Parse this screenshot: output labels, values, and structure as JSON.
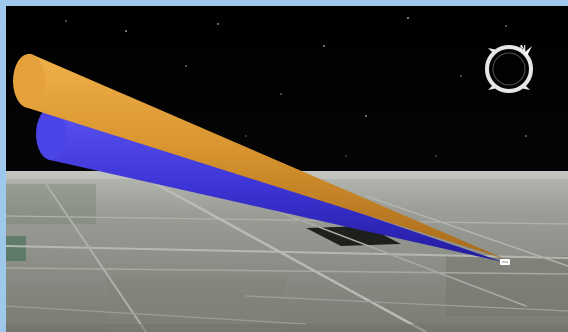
{
  "scene": {
    "sky_color": "#000000",
    "ground_color": "#8f918a",
    "frame_color": "#9ec9ec"
  },
  "beams": [
    {
      "color": "#d9952f",
      "shade": "#a86a1b"
    },
    {
      "color": "#3d35d6",
      "shade": "#221a9e"
    }
  ],
  "compass": {
    "icon": "compass-ring-icon",
    "north_label": "N"
  },
  "marker": {
    "icon": "vehicle-marker-icon",
    "color": "#ffffff"
  }
}
